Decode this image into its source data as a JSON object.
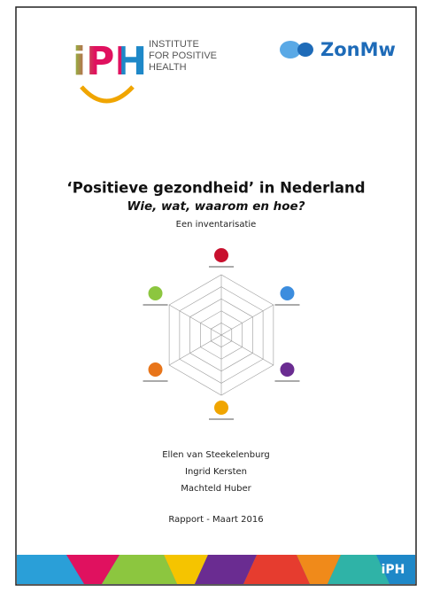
{
  "header": {
    "logo_text": "iPH",
    "institute": [
      "INSTITUTE",
      "FOR POSITIVE",
      "HEALTH"
    ],
    "partner": "ZonMw"
  },
  "title": "‘Positieve gezondheid’ in Nederland",
  "subtitle": "Wie, wat, waarom en hoe?",
  "description": "Een inventarisatie",
  "authors": [
    "Ellen van Steekelenburg",
    "Ingrid Kersten",
    "Machteld Huber"
  ],
  "footer": {
    "report": "Rapport  - Maart 2016",
    "logo_text": "iPH"
  }
}
